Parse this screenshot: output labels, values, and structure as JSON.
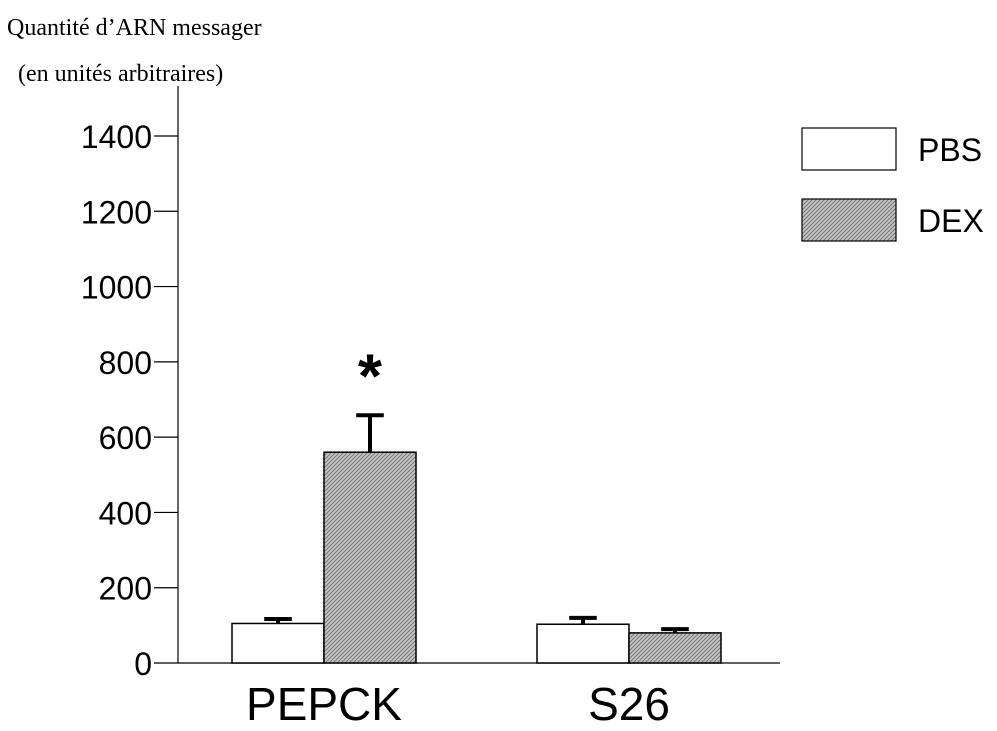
{
  "chart_data": {
    "type": "bar",
    "title": "",
    "ylabel_line1": "Quantité d’ARN messager",
    "ylabel_line2": "(en unités arbitraires)",
    "xlabel": "",
    "categories": [
      "PEPCK",
      "S26"
    ],
    "ylim": [
      0,
      1400
    ],
    "yticks": [
      0,
      200,
      400,
      600,
      800,
      1000,
      1200,
      1400
    ],
    "series": [
      {
        "name": "PBS",
        "values": [
          105,
          103
        ],
        "errors": [
          12,
          17
        ],
        "fill": "#ffffff",
        "pattern": "none"
      },
      {
        "name": "DEX",
        "values": [
          560,
          80
        ],
        "errors": [
          98,
          10
        ],
        "fill": "#bdbdbd",
        "pattern": "hatch"
      }
    ],
    "annotations": [
      {
        "category": "PEPCK",
        "series": "DEX",
        "text": "*"
      }
    ],
    "legend_position": "top-right",
    "grid": false
  }
}
